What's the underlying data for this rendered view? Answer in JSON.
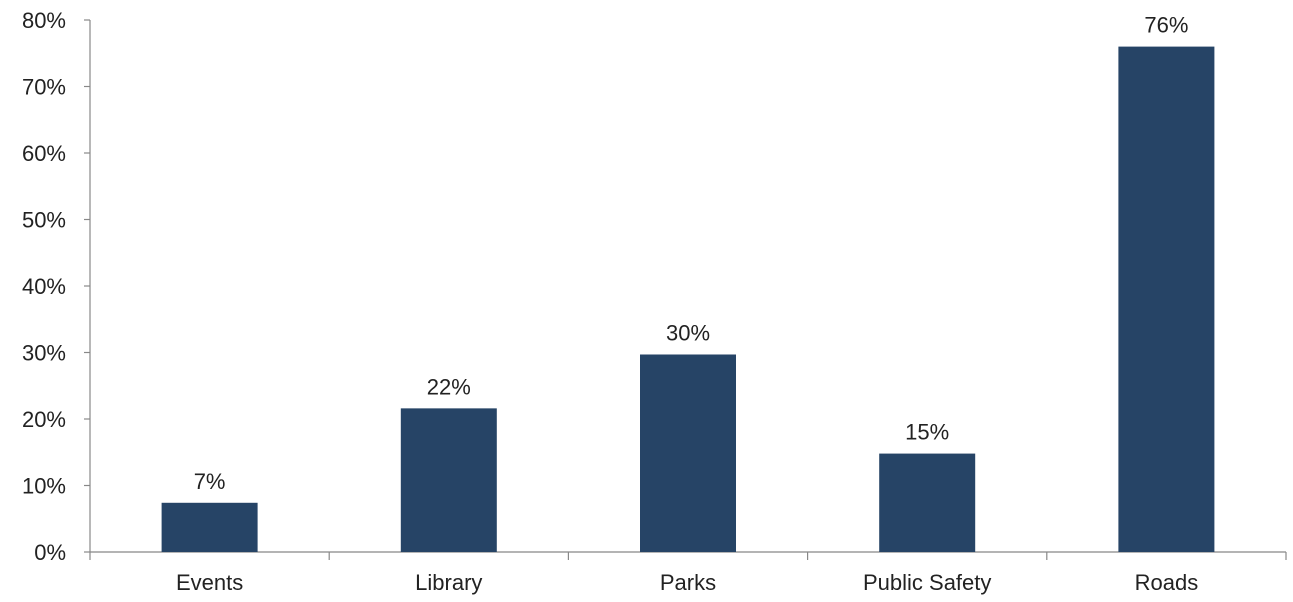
{
  "chart_data": {
    "type": "bar",
    "categories": [
      "Events",
      "Library",
      "Parks",
      "Public Safety",
      "Roads"
    ],
    "values": [
      7.4,
      21.6,
      29.7,
      14.8,
      76.0
    ],
    "data_labels": [
      "7%",
      "22%",
      "30%",
      "15%",
      "76%"
    ],
    "ylim": [
      0,
      80
    ],
    "yticks": [
      0,
      10,
      20,
      30,
      40,
      50,
      60,
      70,
      80
    ],
    "ytick_labels": [
      "0%",
      "10%",
      "20%",
      "30%",
      "40%",
      "50%",
      "60%",
      "70%",
      "80%"
    ],
    "grid": false,
    "legend": "none",
    "bar_color": "#264466"
  }
}
